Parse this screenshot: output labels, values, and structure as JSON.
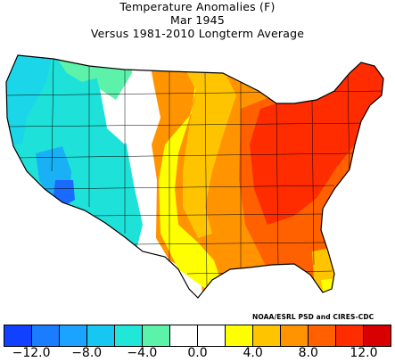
{
  "header": {
    "title": "Temperature Anomalies (F)",
    "period": "Mar 1945",
    "baseline": "Versus 1981-2010 Longterm Average"
  },
  "credit": "NOAA/ESRL PSD and CIRES-CDC",
  "legend": {
    "colors": [
      "#1140ff",
      "#1a7dff",
      "#1aa3ff",
      "#18c6f2",
      "#22e6d8",
      "#5cf2aa",
      "#ffffff",
      "#ffffff",
      "#ffff00",
      "#ffc400",
      "#ff9400",
      "#ff6000",
      "#ff2c00",
      "#d80000"
    ],
    "tick_labels": [
      "-12.0",
      "-8.0",
      "-4.0",
      "0.0",
      "4.0",
      "8.0",
      "12.0"
    ]
  },
  "map_colors": {
    "cyan": "#1ee2d9",
    "light_cyan": "#1ad6e8",
    "sky_blue": "#1ab0f5",
    "blue": "#1a6aff",
    "mint": "#5cf2aa",
    "white": "#ffffff",
    "yellow": "#ffff00",
    "gold": "#ffc400",
    "orange": "#ff9400",
    "dark_orange": "#ff6000",
    "red": "#ff2c00",
    "border": "#000000"
  }
}
